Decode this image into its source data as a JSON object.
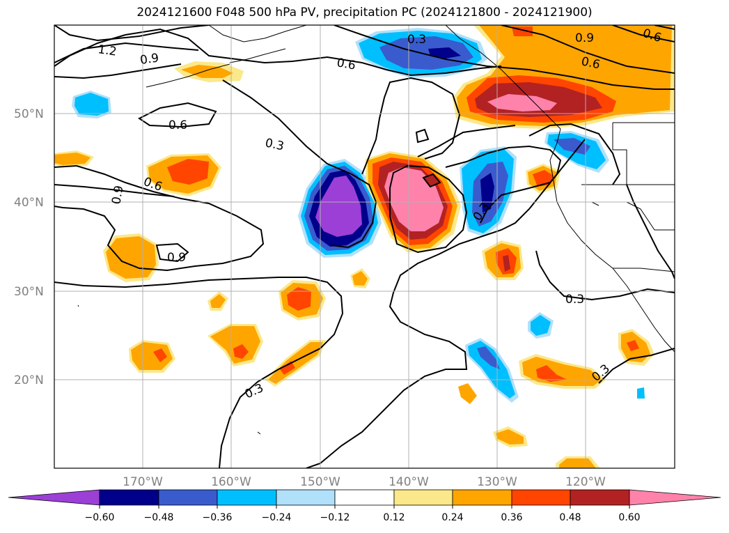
{
  "title": "2024121600 F048 500 hPa PV, precipitation PC (2024121800 - 2024121900)",
  "map": {
    "lat_labels": [
      "50°N",
      "40°N",
      "30°N",
      "20°N"
    ],
    "lon_labels": [
      "170°W",
      "160°W",
      "150°W",
      "140°W",
      "130°W",
      "120°W"
    ],
    "contour_labels": [
      "1.2",
      "0.9",
      "0.6",
      "0.3",
      "0.9",
      "0.6",
      "0.6",
      "0.3",
      "0.6",
      "0.9",
      "0.9",
      "0.3",
      "0.3",
      "0.3",
      "0.3",
      "0.6"
    ]
  },
  "colorbar": {
    "ticks": [
      "−0.60",
      "−0.48",
      "−0.36",
      "−0.24",
      "−0.12",
      "0.12",
      "0.24",
      "0.36",
      "0.48",
      "0.60"
    ],
    "colors": {
      "purple": "#9b3fd6",
      "navy": "#00008b",
      "royal": "#3a5bcd",
      "cyan": "#00bfff",
      "lightblue": "#b0e0fa",
      "white": "#ffffff",
      "yellow": "#fbe88a",
      "orange": "#ffa500",
      "redorange": "#ff4500",
      "firebrick": "#b22222",
      "pink": "#ff82ab"
    }
  }
}
